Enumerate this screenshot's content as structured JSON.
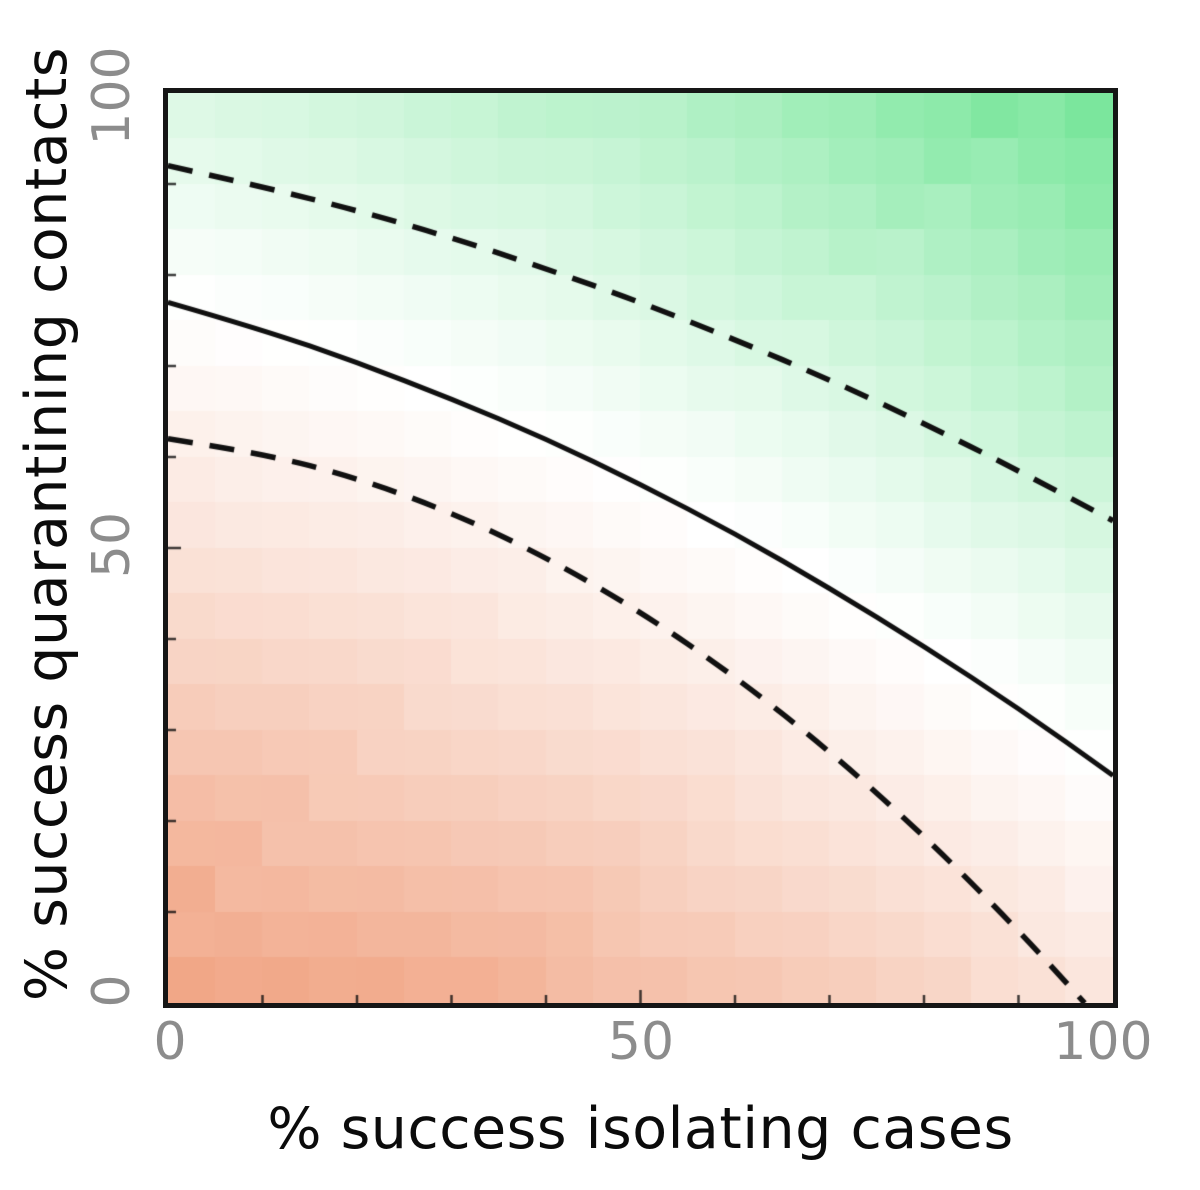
{
  "chart_data": {
    "type": "heatmap",
    "title": "",
    "xlabel": "% success isolating cases",
    "ylabel": "% success quarantining contacts",
    "xlim": [
      0,
      100
    ],
    "ylim": [
      0,
      100
    ],
    "xticks": [
      0,
      50,
      100
    ],
    "yticks": [
      0,
      50,
      100
    ],
    "xtick_labels": [
      "0",
      "50",
      "100"
    ],
    "ytick_labels": [
      "0",
      "50",
      "100"
    ],
    "grid": {
      "cols": 20,
      "rows": 20
    },
    "colormap": {
      "negative": "#f0a07e",
      "zero": "#ffffff",
      "positive": "#6ee493",
      "normalize_negative": 77,
      "normalize_positive": 75,
      "description": "diverging shading: salmon below the solid contour (bottom-left), white band along it, green above it (top-right)"
    },
    "field": {
      "description": "estimated scalar field value(x,y) = y - (77 - 0.28x - 0.0024x^2); solid contour is the zero level",
      "base": 77,
      "b1": 0.28,
      "b2": 0.0024
    },
    "contours": [
      {
        "name": "upper-dashed-contour",
        "style": "dashed",
        "x": [
          0,
          10,
          20,
          30,
          40,
          50,
          60,
          70,
          80,
          90,
          100
        ],
        "y": [
          92,
          89.7,
          87.1,
          84.1,
          80.7,
          77,
          72.9,
          68.5,
          63.7,
          58.5,
          53
        ]
      },
      {
        "name": "solid-contour",
        "style": "solid",
        "x": [
          0,
          10,
          20,
          30,
          40,
          50,
          60,
          70,
          80,
          90,
          100
        ],
        "y": [
          77,
          74,
          70.4,
          66.4,
          62,
          57,
          51.6,
          45.6,
          39.2,
          32.4,
          25
        ]
      },
      {
        "name": "lower-dashed-contour",
        "style": "dashed",
        "x": [
          0,
          10,
          20,
          30,
          40,
          50,
          60,
          70,
          80,
          90,
          97
        ],
        "y": [
          62,
          60.4,
          57.7,
          53.9,
          49,
          43,
          35.9,
          27.7,
          18.4,
          8,
          0
        ]
      }
    ],
    "legend": "none",
    "grid_lines": "off"
  }
}
